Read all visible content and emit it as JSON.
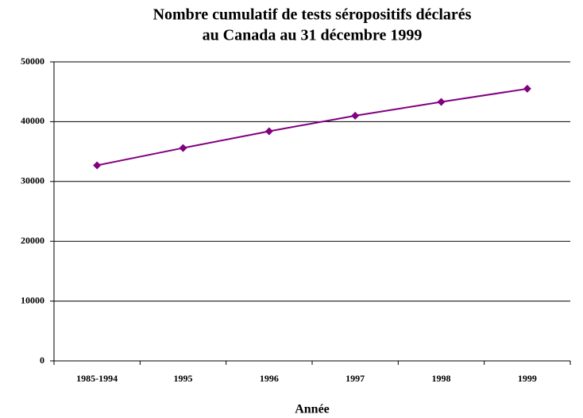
{
  "chart_data": {
    "type": "line",
    "title": [
      "Nombre cumulatif de tests séropositifs déclarés",
      "au Canada au 31 décembre 1999"
    ],
    "x_label": "Année",
    "categories": [
      "1985-1994",
      "1995",
      "1996",
      "1997",
      "1998",
      "1999"
    ],
    "values": [
      32700,
      35600,
      38400,
      41000,
      43300,
      45500
    ],
    "color": "#800080",
    "ylim": [
      0,
      50000
    ],
    "yticks": [
      0,
      10000,
      20000,
      30000,
      40000,
      50000
    ],
    "grid": true
  }
}
